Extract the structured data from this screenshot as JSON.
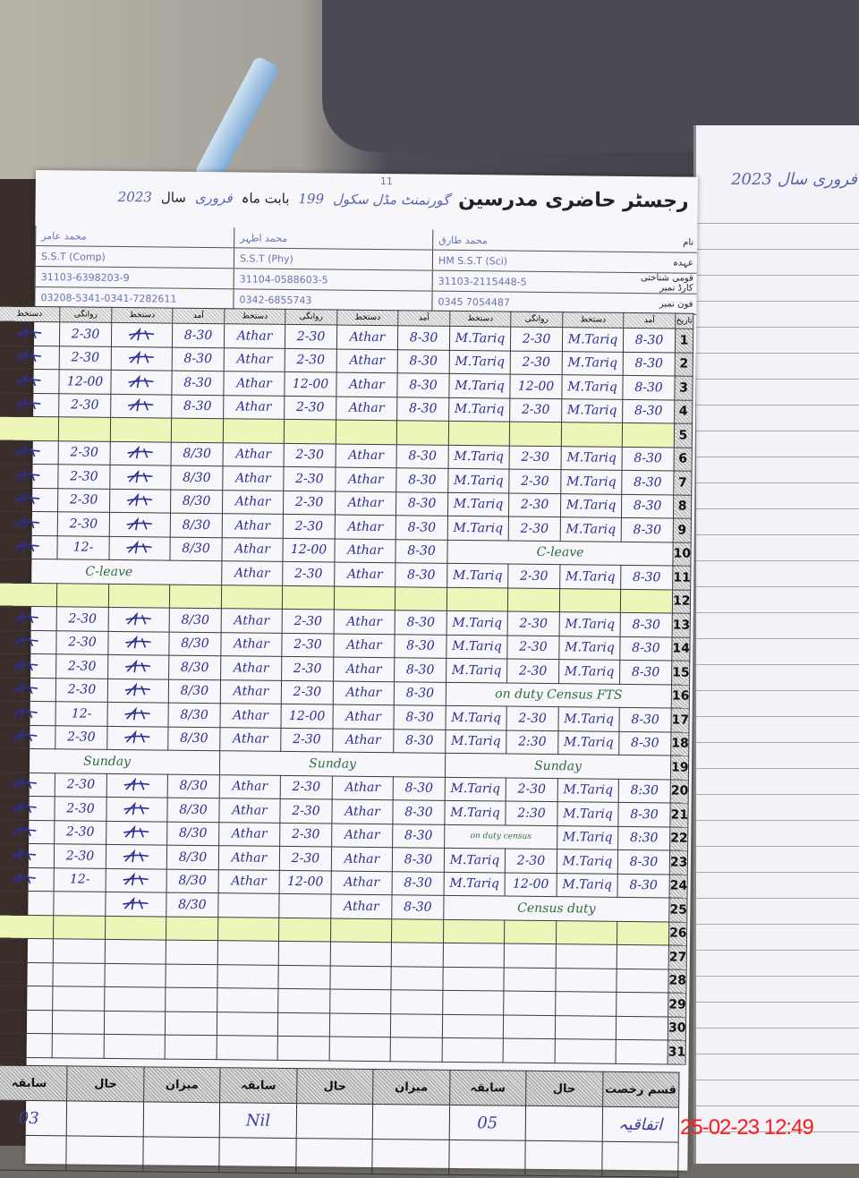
{
  "header": {
    "page_number": "11",
    "title": "رجسٹر حاضری مدرسین",
    "school": "گورنمنٹ مڈل سکول",
    "school_code": "199",
    "month_label": "بابت ماہ",
    "month": "فروری",
    "year_label": "سال",
    "year": "2023"
  },
  "info_labels": [
    "نام",
    "عہدہ",
    "قومی شناختی کارڈ نمبر",
    "فون نمبر"
  ],
  "teachers": [
    {
      "name": "محمد عامر",
      "designation": "S.S.T (Comp)",
      "cnic": "31103-6398203-9",
      "phone": "03208-5341-0341-7282611"
    },
    {
      "name": "محمد اطہر",
      "designation": "S.S.T (Phy)",
      "cnic": "31104-0588603-5",
      "phone": "0342-6855743"
    },
    {
      "name": "محمد طارق",
      "designation": "HM S.S.T (Sci)",
      "cnic": "31103-2115448-5",
      "phone": "0345 7054487"
    }
  ],
  "column_headers": [
    "دستخط",
    "روانگی",
    "دستخط",
    "آمد"
  ],
  "date_header": "تاریخ",
  "rows": [
    {
      "date": "1",
      "g": [
        [
          "sig",
          "2-30",
          "sig",
          "8-30"
        ],
        [
          "Athar",
          "2-30",
          "Athar",
          "8-30"
        ],
        [
          "M.Tariq",
          "2-30",
          "M.Tariq",
          "8-30"
        ]
      ]
    },
    {
      "date": "2",
      "g": [
        [
          "sig",
          "2-30",
          "sig",
          "8-30"
        ],
        [
          "Athar",
          "2-30",
          "Athar",
          "8-30"
        ],
        [
          "M.Tariq",
          "2-30",
          "M.Tariq",
          "8-30"
        ]
      ]
    },
    {
      "date": "3",
      "g": [
        [
          "sig",
          "12-00",
          "sig",
          "8-30"
        ],
        [
          "Athar",
          "12-00",
          "Athar",
          "8-30"
        ],
        [
          "M.Tariq",
          "12-00",
          "M.Tariq",
          "8-30"
        ]
      ]
    },
    {
      "date": "4",
      "g": [
        [
          "sig",
          "2-30",
          "sig",
          "8-30"
        ],
        [
          "Athar",
          "2-30",
          "Athar",
          "8-30"
        ],
        [
          "M.Tariq",
          "2-30",
          "M.Tariq",
          "8-30"
        ]
      ]
    },
    {
      "date": "5",
      "highlight": true,
      "g": [
        [
          "",
          "",
          "",
          ""
        ],
        [
          "",
          "",
          "",
          ""
        ],
        [
          "",
          "",
          "",
          ""
        ]
      ]
    },
    {
      "date": "6",
      "g": [
        [
          "sig",
          "2-30",
          "sig",
          "8/30"
        ],
        [
          "Athar",
          "2-30",
          "Athar",
          "8-30"
        ],
        [
          "M.Tariq",
          "2-30",
          "M.Tariq",
          "8-30"
        ]
      ]
    },
    {
      "date": "7",
      "g": [
        [
          "sig",
          "2-30",
          "sig",
          "8/30"
        ],
        [
          "Athar",
          "2-30",
          "Athar",
          "8-30"
        ],
        [
          "M.Tariq",
          "2-30",
          "M.Tariq",
          "8-30"
        ]
      ]
    },
    {
      "date": "8",
      "g": [
        [
          "sig",
          "2-30",
          "sig",
          "8/30"
        ],
        [
          "Athar",
          "2-30",
          "Athar",
          "8-30"
        ],
        [
          "M.Tariq",
          "2-30",
          "M.Tariq",
          "8-30"
        ]
      ]
    },
    {
      "date": "9",
      "g": [
        [
          "sig",
          "2-30",
          "sig",
          "8/30"
        ],
        [
          "Athar",
          "2-30",
          "Athar",
          "8-30"
        ],
        [
          "M.Tariq",
          "2-30",
          "M.Tariq",
          "8-30"
        ]
      ]
    },
    {
      "date": "10",
      "g": [
        [
          "sig",
          "12-",
          "sig",
          "8/30"
        ],
        [
          "Athar",
          "12-00",
          "Athar",
          "8-30"
        ],
        "C-leave"
      ]
    },
    {
      "date": "11",
      "g": [
        "C-leave",
        [
          "Athar",
          "2-30",
          "Athar",
          "8-30"
        ],
        [
          "M.Tariq",
          "2-30",
          "M.Tariq",
          "8-30"
        ]
      ]
    },
    {
      "date": "12",
      "highlight": true,
      "g": [
        [
          "",
          "",
          "",
          ""
        ],
        [
          "",
          "",
          "",
          ""
        ],
        [
          "",
          "",
          "",
          ""
        ]
      ]
    },
    {
      "date": "13",
      "g": [
        [
          "sig",
          "2-30",
          "sig",
          "8/30"
        ],
        [
          "Athar",
          "2-30",
          "Athar",
          "8-30"
        ],
        [
          "M.Tariq",
          "2-30",
          "M.Tariq",
          "8-30"
        ]
      ]
    },
    {
      "date": "14",
      "g": [
        [
          "sig",
          "2-30",
          "sig",
          "8/30"
        ],
        [
          "Athar",
          "2-30",
          "Athar",
          "8-30"
        ],
        [
          "M.Tariq",
          "2-30",
          "M.Tariq",
          "8-30"
        ]
      ]
    },
    {
      "date": "15",
      "g": [
        [
          "sig",
          "2-30",
          "sig",
          "8/30"
        ],
        [
          "Athar",
          "2-30",
          "Athar",
          "8-30"
        ],
        [
          "M.Tariq",
          "2-30",
          "M.Tariq",
          "8-30"
        ]
      ]
    },
    {
      "date": "16",
      "g": [
        [
          "sig",
          "2-30",
          "sig",
          "8/30"
        ],
        [
          "Athar",
          "2-30",
          "Athar",
          "8-30"
        ],
        "on duty Census FTS"
      ]
    },
    {
      "date": "17",
      "g": [
        [
          "sig",
          "12-",
          "sig",
          "8/30"
        ],
        [
          "Athar",
          "12-00",
          "Athar",
          "8-30"
        ],
        [
          "M.Tariq",
          "2-30",
          "M.Tariq",
          "8-30"
        ]
      ]
    },
    {
      "date": "18",
      "g": [
        [
          "sig",
          "2-30",
          "sig",
          "8/30"
        ],
        [
          "Athar",
          "2-30",
          "Athar",
          "8-30"
        ],
        [
          "M.Tariq",
          "2:30",
          "M.Tariq",
          "8-30"
        ]
      ]
    },
    {
      "date": "19",
      "g": [
        "Sunday",
        "Sunday",
        "Sunday"
      ]
    },
    {
      "date": "20",
      "g": [
        [
          "sig",
          "2-30",
          "sig",
          "8/30"
        ],
        [
          "Athar",
          "2-30",
          "Athar",
          "8-30"
        ],
        [
          "M.Tariq",
          "2-30",
          "M.Tariq",
          "8:30"
        ]
      ]
    },
    {
      "date": "21",
      "g": [
        [
          "sig",
          "2-30",
          "sig",
          "8/30"
        ],
        [
          "Athar",
          "2-30",
          "Athar",
          "8-30"
        ],
        [
          "M.Tariq",
          "2:30",
          "M.Tariq",
          "8-30"
        ]
      ]
    },
    {
      "date": "22",
      "g": [
        [
          "sig",
          "2-30",
          "sig",
          "8/30"
        ],
        [
          "Athar",
          "2-30",
          "Athar",
          "8-30"
        ],
        [
          "on duty census",
          "",
          "M.Tariq",
          "8:30"
        ]
      ]
    },
    {
      "date": "23",
      "g": [
        [
          "sig",
          "2-30",
          "sig",
          "8/30"
        ],
        [
          "Athar",
          "2-30",
          "Athar",
          "8-30"
        ],
        [
          "M.Tariq",
          "2-30",
          "M.Tariq",
          "8-30"
        ]
      ]
    },
    {
      "date": "24",
      "g": [
        [
          "sig",
          "12-",
          "sig",
          "8/30"
        ],
        [
          "Athar",
          "12-00",
          "Athar",
          "8-30"
        ],
        [
          "M.Tariq",
          "12-00",
          "M.Tariq",
          "8-30"
        ]
      ]
    },
    {
      "date": "25",
      "g": [
        [
          "",
          "",
          "sig",
          "8/30"
        ],
        [
          "",
          "",
          "Athar",
          "8-30"
        ],
        "Census duty"
      ]
    },
    {
      "date": "26",
      "highlight": true,
      "g": [
        [
          "",
          "",
          "",
          ""
        ],
        [
          "",
          "",
          "",
          ""
        ],
        [
          "",
          "",
          "",
          ""
        ]
      ]
    },
    {
      "date": "27",
      "g": [
        [
          "",
          "",
          "",
          ""
        ],
        [
          "",
          "",
          "",
          ""
        ],
        [
          "",
          "",
          "",
          ""
        ]
      ]
    },
    {
      "date": "28",
      "g": [
        [
          "",
          "",
          "",
          ""
        ],
        [
          "",
          "",
          "",
          ""
        ],
        [
          "",
          "",
          "",
          ""
        ]
      ]
    },
    {
      "date": "29",
      "g": [
        [
          "",
          "",
          "",
          ""
        ],
        [
          "",
          "",
          "",
          ""
        ],
        [
          "",
          "",
          "",
          ""
        ]
      ]
    },
    {
      "date": "30",
      "g": [
        [
          "",
          "",
          "",
          ""
        ],
        [
          "",
          "",
          "",
          ""
        ],
        [
          "",
          "",
          "",
          ""
        ]
      ]
    },
    {
      "date": "31",
      "g": [
        [
          "",
          "",
          "",
          ""
        ],
        [
          "",
          "",
          "",
          ""
        ],
        [
          "",
          "",
          "",
          ""
        ]
      ]
    }
  ],
  "footer": {
    "headers": [
      "سابقہ",
      "حال",
      "میزان",
      "سابقہ",
      "حال",
      "میزان",
      "سابقہ",
      "حال",
      "قسم رخصت"
    ],
    "values": [
      "03",
      "",
      "",
      "Nil",
      "",
      "",
      "05",
      "",
      "اتفاقیہ"
    ]
  },
  "right_page": {
    "title": "فروری سال 2023"
  },
  "timestamp": "25-02-23 12:49"
}
